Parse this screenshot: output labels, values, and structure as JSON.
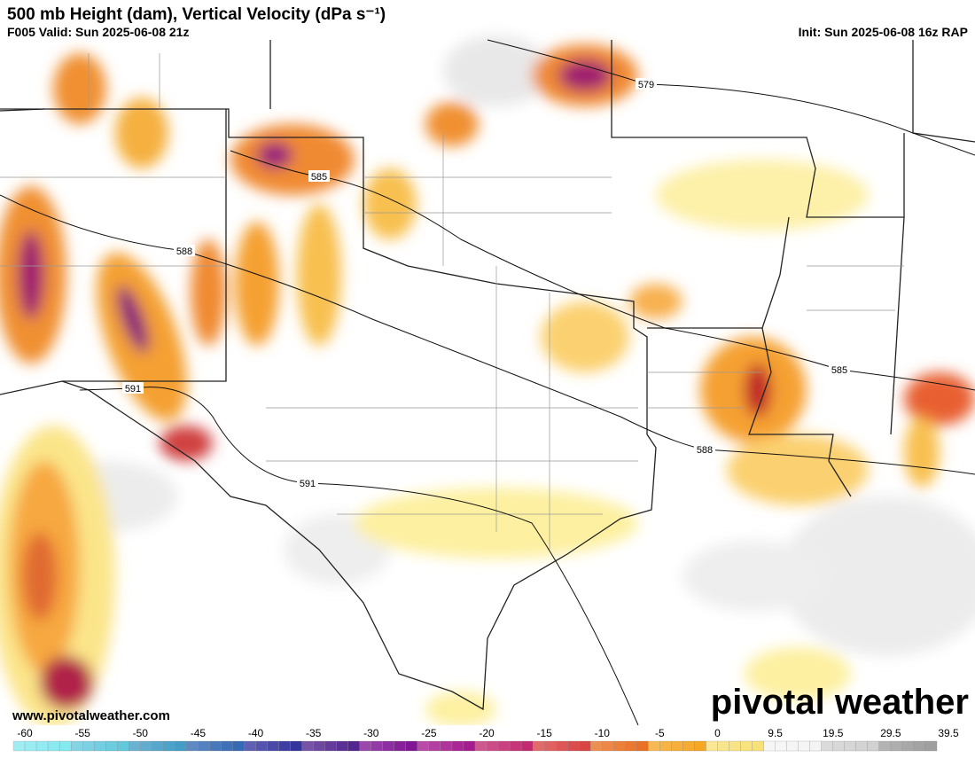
{
  "header": {
    "title": "500 mb Height (dam), Vertical Velocity (dPa s⁻¹)",
    "valid": "F005 Valid: Sun 2025-06-08 21z",
    "init": "Init: Sun 2025-06-08 16z RAP"
  },
  "map": {
    "contour_labels": [
      579,
      585,
      588,
      591,
      591,
      588,
      585
    ],
    "watermark": "www.pivotalweather.com",
    "logo": "pivotal weather"
  },
  "colorbar": {
    "labels": [
      -60,
      -55,
      -50,
      -45,
      -40,
      -35,
      -30,
      -25,
      -20,
      -15,
      -10,
      -5,
      0,
      9.5,
      19.5,
      29.5,
      39.5
    ],
    "colors": [
      "#7fe8f0",
      "#5cc6dc",
      "#3a98c4",
      "#2a62b0",
      "#2a2a9a",
      "#4a1a8a",
      "#7a0a90",
      "#a0108a",
      "#c0206a",
      "#d83a3a",
      "#e86a1a",
      "#f5a21a",
      "#f8e070",
      "#f4f4f4",
      "#cfcfcf",
      "#9a9a9a"
    ]
  }
}
